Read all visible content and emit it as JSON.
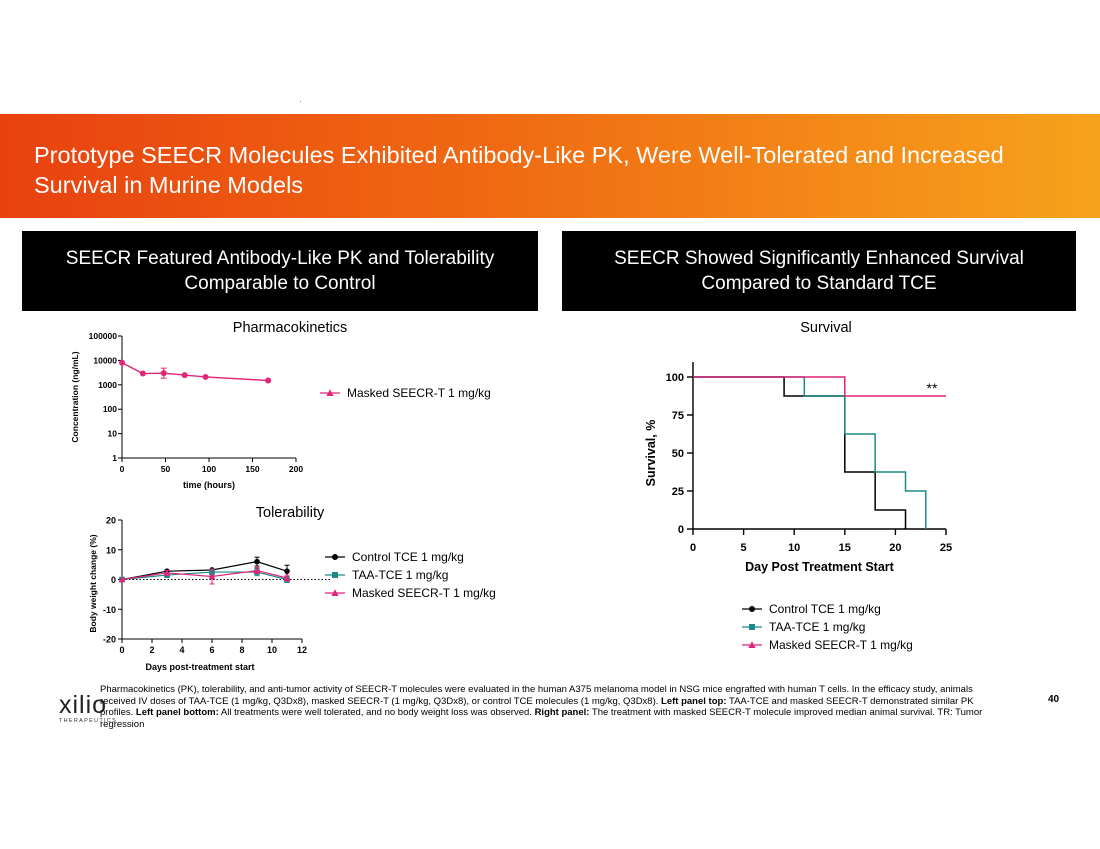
{
  "title": "Prototype SEECR Molecules Exhibited Antibody-Like PK, Were Well-Tolerated and Increased Survival in Murine Models",
  "left_header": "SEECR Featured Antibody-Like PK and Tolerability Comparable to Control",
  "right_header": "SEECR Showed Significantly Enhanced Survival Compared to Standard TCE",
  "footnote": {
    "p1": "Pharmacokinetics (PK), tolerability, and anti-tumor activity of SEECR-T molecules were evaluated in the human A375 melanoma model in NSG mice engrafted with human T cells. In the efficacy study, animals received IV doses of TAA-TCE (1 mg/kg, Q3Dx8), masked SEECR-T (1 mg/kg, Q3Dx8), or control TCE molecules (1 mg/kg, Q3Dx8).",
    "b1": "Left panel top:",
    "p2": "TAA-TCE and masked SEECR-T demonstrated similar PK profiles.",
    "b2": "Left panel bottom:",
    "p3": "All treatments were well tolerated, and no body weight loss was observed.",
    "b3": "Right panel:",
    "p4": "The treatment with masked SEECR-T molecule improved median animal survival. TR: Tumor regression"
  },
  "page_number": "40",
  "logo": {
    "word": "xilio",
    "subtitle": "THERAPEUTICS"
  },
  "colors": {
    "control": "#000000",
    "taa": "#1a8a8a",
    "masked": "#e0257a"
  },
  "chart_data": [
    {
      "id": "pk",
      "type": "line",
      "title": "Pharmacokinetics",
      "xlabel": "time (hours)",
      "ylabel": "Concentration (ng/mL)",
      "yscale": "log",
      "xlim": [
        0,
        200
      ],
      "ylim": [
        1,
        100000
      ],
      "xticks": [
        0,
        50,
        100,
        150,
        200
      ],
      "yticks": [
        1,
        10,
        100,
        1000,
        10000,
        100000
      ],
      "ytick_labels": [
        "1",
        "10",
        "100",
        "1000",
        "10000",
        "100000"
      ],
      "series": [
        {
          "name": "Masked SEECR-T 1 mg/kg",
          "color": "#e0257a",
          "marker": "circle",
          "x": [
            0,
            24,
            48,
            72,
            96,
            168
          ],
          "y": [
            8000,
            2900,
            3000,
            2500,
            2100,
            1500
          ]
        }
      ]
    },
    {
      "id": "tol",
      "type": "line",
      "title": "Tolerability",
      "xlabel": "Days post-treatment start",
      "ylabel": "Body weight change (%)",
      "xlim": [
        0,
        12
      ],
      "ylim": [
        -20,
        20
      ],
      "xticks": [
        0,
        2,
        4,
        6,
        8,
        10,
        12
      ],
      "yticks": [
        -20,
        -10,
        0,
        10,
        20
      ],
      "series": [
        {
          "name": "Control TCE 1 mg/kg",
          "color": "#000000",
          "marker": "circle",
          "x": [
            0,
            3,
            6,
            9,
            11
          ],
          "y": [
            0,
            2.8,
            3.2,
            6,
            2.8
          ]
        },
        {
          "name": "TAA-TCE 1 mg/kg",
          "color": "#1a8a8a",
          "marker": "square",
          "x": [
            0,
            3,
            6,
            9,
            11
          ],
          "y": [
            0,
            1.5,
            2.5,
            2.5,
            0
          ]
        },
        {
          "name": "Masked SEECR-T 1 mg/kg",
          "color": "#e0257a",
          "marker": "triangle",
          "x": [
            0,
            3,
            6,
            9,
            11
          ],
          "y": [
            0,
            2.2,
            1,
            3,
            0.5
          ]
        }
      ]
    },
    {
      "id": "surv",
      "type": "line",
      "subtype": "step",
      "title": "Survival",
      "xlabel": "Day Post Treatment Start",
      "ylabel": "Survival, %",
      "xlim": [
        0,
        25
      ],
      "ylim": [
        0,
        100
      ],
      "xticks": [
        0,
        5,
        10,
        15,
        20,
        25
      ],
      "yticks": [
        0,
        25,
        50,
        75,
        100
      ],
      "annotation": "**",
      "series": [
        {
          "name": "Control TCE 1 mg/kg",
          "color": "#000000",
          "x": [
            0,
            9,
            15,
            18,
            21
          ],
          "y": [
            100,
            87.5,
            37.5,
            12.5,
            0
          ]
        },
        {
          "name": "TAA-TCE 1 mg/kg",
          "color": "#1a8a8a",
          "x": [
            0,
            11,
            15,
            18,
            21,
            23
          ],
          "y": [
            100,
            87.5,
            62.5,
            37.5,
            25,
            0
          ]
        },
        {
          "name": "Masked SEECR-T 1 mg/kg",
          "color": "#e0257a",
          "x": [
            0,
            15,
            25
          ],
          "y": [
            100,
            87.5,
            87.5
          ]
        }
      ]
    }
  ]
}
